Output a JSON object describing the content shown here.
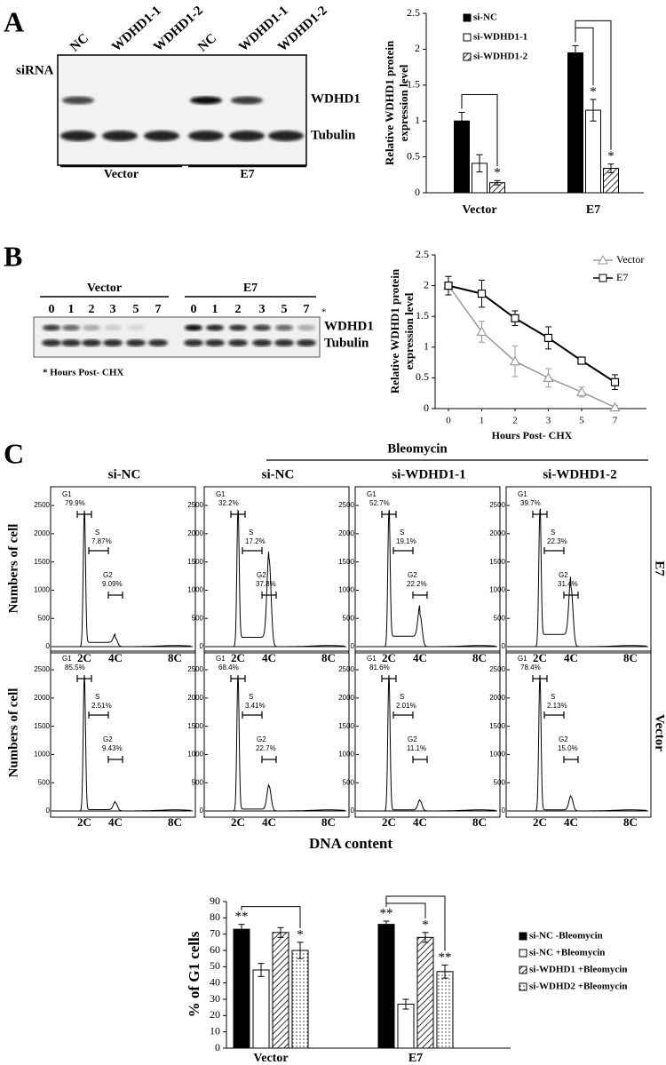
{
  "panels": [
    "A",
    "B",
    "C"
  ],
  "blot_a": {
    "row_label": "siRNA",
    "lanes": [
      "NC",
      "WDHD1-1",
      "WDHD1-2",
      "NC",
      "WDHD1-1",
      "WDHD1-2"
    ],
    "bands": [
      "WDHD1",
      "Tubulin"
    ],
    "groups": [
      "Vector",
      "E7"
    ]
  },
  "blot_b": {
    "groups": [
      "Vector",
      "E7"
    ],
    "lanes": [
      "0",
      "1",
      "2",
      "3",
      "5",
      "7",
      "0",
      "1",
      "2",
      "3",
      "5",
      "7"
    ],
    "lane_note": "*",
    "bands": [
      "WDHD1",
      "Tubulin"
    ],
    "footnote": "* Hours Post- CHX"
  },
  "flow": {
    "treatment": "Bleomycin",
    "columns": [
      "si-NC",
      "si-NC",
      "si-WDHD1-1",
      "si-WDHD1-2"
    ],
    "ylabel": "Numbers of cell",
    "xlabel": "DNA content",
    "ylim": [
      0,
      2800
    ],
    "yticks": [
      0,
      500,
      1000,
      1500,
      2000,
      2500
    ],
    "xticks": [
      "2C",
      "4C",
      "8C"
    ],
    "rows": [
      {
        "label": "E7",
        "plots": [
          {
            "gates": [
              {
                "name": "G1",
                "value": "79.9%"
              },
              {
                "name": "S",
                "value": "7.87%"
              },
              {
                "name": "G2",
                "value": "9.09%"
              }
            ]
          },
          {
            "gates": [
              {
                "name": "G1",
                "value": "32.2%"
              },
              {
                "name": "S",
                "value": "17.2%"
              },
              {
                "name": "G2",
                "value": "37.8%"
              }
            ]
          },
          {
            "gates": [
              {
                "name": "G1",
                "value": "52.7%"
              },
              {
                "name": "S",
                "value": "19.1%"
              },
              {
                "name": "G2",
                "value": "22.2%"
              }
            ]
          },
          {
            "gates": [
              {
                "name": "G1",
                "value": "39.7%"
              },
              {
                "name": "S",
                "value": "22.3%"
              },
              {
                "name": "G2",
                "value": "31.4%"
              }
            ]
          }
        ]
      },
      {
        "label": "Vector",
        "plots": [
          {
            "gates": [
              {
                "name": "G1",
                "value": "85.5%"
              },
              {
                "name": "S",
                "value": "2.51%"
              },
              {
                "name": "G2",
                "value": "9.43%"
              }
            ]
          },
          {
            "gates": [
              {
                "name": "G1",
                "value": "68.4%"
              },
              {
                "name": "S",
                "value": "3.41%"
              },
              {
                "name": "G2",
                "value": "22.7%"
              }
            ]
          },
          {
            "gates": [
              {
                "name": "G1",
                "value": "81.6%"
              },
              {
                "name": "S",
                "value": "2.01%"
              },
              {
                "name": "G2",
                "value": "11.1%"
              }
            ]
          },
          {
            "gates": [
              {
                "name": "G1",
                "value": "78.4%"
              },
              {
                "name": "S",
                "value": "2.13%"
              },
              {
                "name": "G2",
                "value": "15.0%"
              }
            ]
          }
        ]
      }
    ]
  },
  "chart_data": [
    {
      "type": "bar",
      "ylabel": [
        "Relative WDHD1 protein",
        "expression level"
      ],
      "categories": [
        "Vector",
        "E7"
      ],
      "ylim": [
        0,
        2.5
      ],
      "yticks": [
        0,
        0.5,
        1,
        1.5,
        2,
        2.5
      ],
      "series": [
        {
          "name": "si-NC",
          "color": "#000000",
          "pattern": "solid",
          "values": [
            1,
            1.95
          ],
          "errors": [
            0.12,
            0.1
          ],
          "significance": [
            null,
            null
          ]
        },
        {
          "name": "si-WDHD1-1",
          "color": "#ffffff",
          "pattern": "solid",
          "values": [
            0.41,
            1.15
          ],
          "errors": [
            0.12,
            0.15
          ],
          "significance": [
            null,
            "*"
          ]
        },
        {
          "name": "si-WDHD1-2",
          "color": "#000000",
          "pattern": "hatch",
          "values": [
            0.14,
            0.34
          ],
          "errors": [
            0.03,
            0.06
          ],
          "significance": [
            "*",
            "*"
          ]
        }
      ]
    },
    {
      "type": "line",
      "ylabel": [
        "Relative WDHD1 protein",
        "expression level"
      ],
      "xlabel": "Hours Post- CHX",
      "categories": [
        "0",
        "1",
        "2",
        "3",
        "5",
        "7"
      ],
      "ylim": [
        0,
        2.5
      ],
      "yticks": [
        0,
        0.5,
        1,
        1.5,
        2,
        2.5
      ],
      "series": [
        {
          "name": "Vector",
          "color": "#9a9a9a",
          "marker": "triangle",
          "values": [
            2,
            1.25,
            0.77,
            0.5,
            0.27,
            0.02
          ],
          "errors": [
            0.15,
            0.17,
            0.25,
            0.15,
            0.08,
            0.03
          ]
        },
        {
          "name": "E7",
          "color": "#000000",
          "marker": "square",
          "values": [
            2,
            1.87,
            1.47,
            1.15,
            0.78,
            0.43
          ],
          "errors": [
            0.15,
            0.22,
            0.12,
            0.18,
            0.05,
            0.12
          ]
        }
      ]
    },
    {
      "type": "bar",
      "ylabel": "% of G1 cells",
      "categories": [
        "Vector",
        "E7"
      ],
      "ylim": [
        0,
        90
      ],
      "yticks": [
        0,
        10,
        20,
        30,
        40,
        50,
        60,
        70,
        80,
        90
      ],
      "series": [
        {
          "name": "si-NC -Bleomycin",
          "color": "#000000",
          "pattern": "solid",
          "values": [
            73,
            76
          ],
          "errors": [
            3,
            2
          ],
          "significance": [
            "**",
            "**"
          ]
        },
        {
          "name": "si-NC +Bleomycin",
          "color": "#ffffff",
          "pattern": "solid",
          "values": [
            48,
            27
          ],
          "errors": [
            4,
            3
          ],
          "significance": [
            null,
            null
          ]
        },
        {
          "name": "si-WDHD1 +Bleomycin",
          "color": "#000000",
          "pattern": "hatch",
          "values": [
            71,
            68
          ],
          "errors": [
            3,
            3
          ],
          "significance": [
            null,
            "*"
          ]
        },
        {
          "name": "si-WDHD2 +Bleomycin",
          "color": "#000000",
          "pattern": "dots",
          "values": [
            60,
            47
          ],
          "errors": [
            5,
            4
          ],
          "significance": [
            "*",
            "**"
          ]
        }
      ]
    }
  ]
}
